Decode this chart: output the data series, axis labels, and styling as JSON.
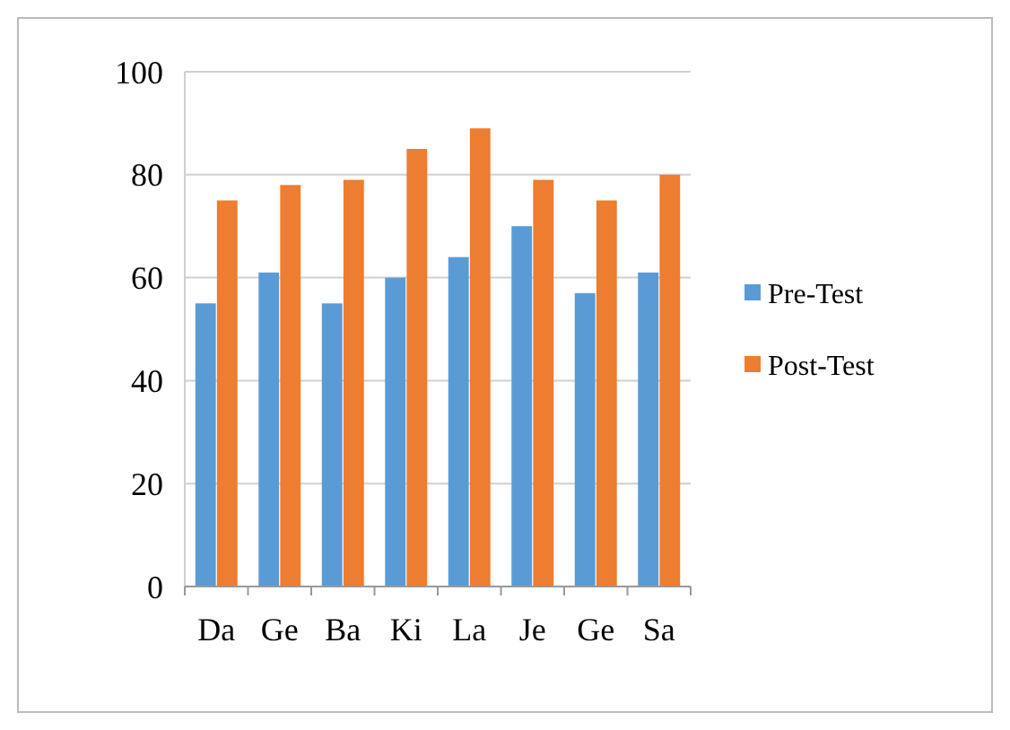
{
  "chart_data": {
    "type": "bar",
    "categories": [
      "Da",
      "Ge",
      "Ba",
      "Ki",
      "La",
      "Je",
      "Ge",
      "Sa"
    ],
    "series": [
      {
        "name": "Pre-Test",
        "color": "#5b9bd5",
        "values": [
          55,
          61,
          55,
          60,
          64,
          70,
          57,
          61
        ]
      },
      {
        "name": "Post-Test",
        "color": "#ed7d31",
        "values": [
          75,
          78,
          79,
          85,
          89,
          79,
          75,
          80
        ]
      }
    ],
    "ylim": [
      0,
      100
    ],
    "yticks": [
      0,
      20,
      40,
      60,
      80,
      100
    ],
    "grid": "y",
    "legend": "right"
  }
}
